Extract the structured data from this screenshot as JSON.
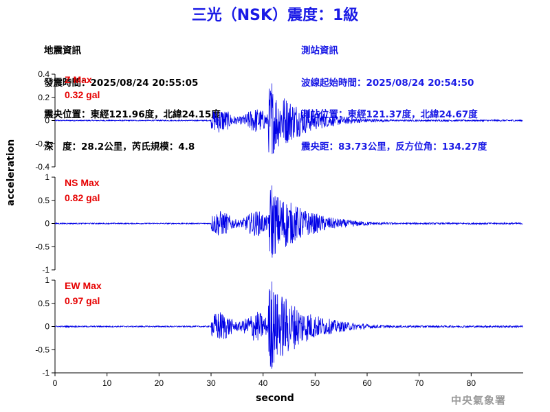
{
  "title": "三光（NSK）震度：1級",
  "earthquake_info": {
    "heading": "地震資訊",
    "origin_time": "發震時間：2025/08/24 20:55:05",
    "epicenter": "震央位置：東經121.96度，北緯24.15度",
    "depth_magnitude": "深　度：28.2公里，芮氏規模：4.8"
  },
  "station_info": {
    "heading": "測站資訊",
    "wave_start": "波線起始時間：2025/08/24 20:54:50",
    "location": "測站位置：東經121.37度，北緯24.67度",
    "distance": "震央距：83.73公里，反方位角：134.27度"
  },
  "agency": "中央氣象署",
  "colors": {
    "trace": "#0000e6",
    "title": "#1a1ae6",
    "station_text": "#1a1ae6",
    "max_label": "#e60000"
  },
  "chart_data": {
    "type": "line",
    "xlabel": "second",
    "ylabel": "acceleration",
    "xlim": [
      0,
      90
    ],
    "x_ticks": [
      0,
      10,
      20,
      30,
      40,
      50,
      60,
      70,
      80
    ],
    "grid": false,
    "panels": [
      {
        "component": "Z",
        "max_label": "Z Max",
        "max_value": "0.32 gal",
        "ylim": [
          -0.4,
          0.4
        ],
        "y_ticks": [
          -0.4,
          -0.2,
          0,
          0.2,
          0.4
        ],
        "y_tick_labels": [
          "-0.4",
          "-0.2",
          "0",
          "0.2",
          "0.4"
        ],
        "peak": 0.32,
        "p_arrival": 30,
        "s_arrival": 41.5
      },
      {
        "component": "NS",
        "max_label": "NS Max",
        "max_value": "0.82 gal",
        "ylim": [
          -1,
          1
        ],
        "y_ticks": [
          -1,
          -0.5,
          0,
          0.5,
          1
        ],
        "y_tick_labels": [
          "-1",
          "-0.5",
          "0",
          "0.5",
          "1"
        ],
        "peak": 0.82,
        "p_arrival": 30,
        "s_arrival": 41.5
      },
      {
        "component": "EW",
        "max_label": "EW Max",
        "max_value": "0.97 gal",
        "ylim": [
          -1,
          1
        ],
        "y_ticks": [
          -1,
          -0.5,
          0,
          0.5,
          1
        ],
        "y_tick_labels": [
          "-1",
          "-0.5",
          "0",
          "0.5",
          "1"
        ],
        "peak": 0.97,
        "p_arrival": 30,
        "s_arrival": 41.5
      }
    ]
  }
}
